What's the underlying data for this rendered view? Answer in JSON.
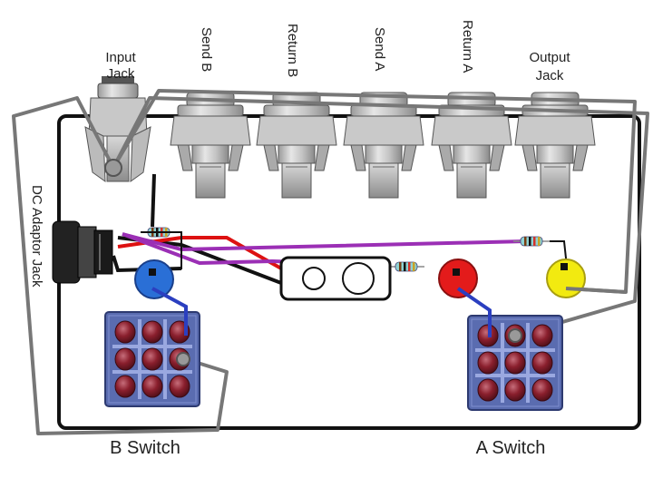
{
  "labels": {
    "input_jack_line1": "Input",
    "input_jack_line2": "Jack",
    "send_b": "Send B",
    "return_b": "Return B",
    "send_a": "Send A",
    "return_a": "Return A",
    "output_jack_line1": "Output",
    "output_jack_line2": "Jack",
    "dc_adaptor_jack": "DC Adaptor Jack",
    "b_switch": "B Switch",
    "a_switch": "A Switch"
  },
  "colors": {
    "enclosure": "#111111",
    "wire_gray": "#777777",
    "wire_purple": "#9b2fb5",
    "wire_red": "#dd1111",
    "wire_black": "#111111",
    "wire_blue": "#2b3fc0",
    "led_blue": "#2a6fd6",
    "led_red": "#e31b1b",
    "led_yellow": "#f2ea10",
    "switch_body": "#5a6cb0",
    "switch_lugs": "#8a1f2d"
  },
  "components": {
    "jacks": [
      "input-jack",
      "send-b-jack",
      "return-b-jack",
      "send-a-jack",
      "return-a-jack",
      "output-jack"
    ],
    "leds": [
      "blue-led",
      "red-led",
      "yellow-led"
    ],
    "switches": [
      "b-switch",
      "a-switch"
    ],
    "resistors": 3
  }
}
